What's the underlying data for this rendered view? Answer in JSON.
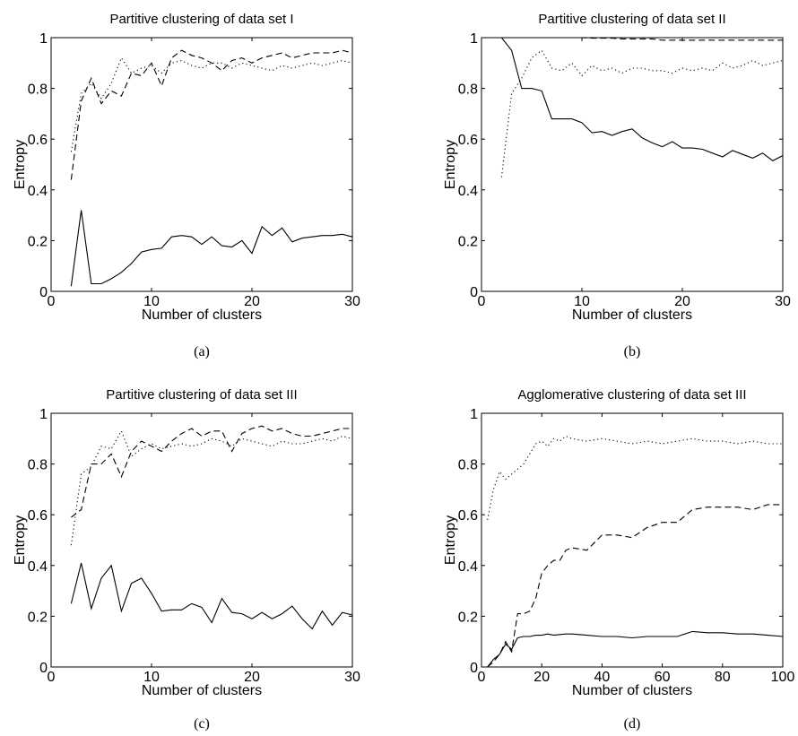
{
  "chart_data": [
    {
      "type": "line",
      "title": "Partitive clustering of data set I",
      "xlabel": "Number of clusters",
      "ylabel": "Entropy",
      "caption": "(a)",
      "xlim": [
        0,
        30
      ],
      "ylim": [
        0,
        1
      ],
      "xticks": [
        0,
        10,
        20,
        30
      ],
      "yticks": [
        0,
        0.2,
        0.4,
        0.6,
        0.8,
        1
      ],
      "ytick_labels": [
        "0",
        "0.2",
        "0.4",
        "0.6",
        "0.8",
        "1"
      ],
      "grid": false,
      "x": [
        2,
        3,
        4,
        5,
        6,
        7,
        8,
        9,
        10,
        11,
        12,
        13,
        14,
        15,
        16,
        17,
        18,
        19,
        20,
        21,
        22,
        23,
        24,
        25,
        26,
        27,
        28,
        29,
        30
      ],
      "series": [
        {
          "style": "solid",
          "values": [
            0.02,
            0.32,
            0.03,
            0.03,
            0.05,
            0.075,
            0.11,
            0.155,
            0.165,
            0.17,
            0.215,
            0.22,
            0.215,
            0.185,
            0.215,
            0.18,
            0.175,
            0.2,
            0.15,
            0.255,
            0.22,
            0.25,
            0.195,
            0.21,
            0.215,
            0.22,
            0.22,
            0.225,
            0.215
          ]
        },
        {
          "style": "dashed",
          "values": [
            0.44,
            0.75,
            0.84,
            0.74,
            0.79,
            0.77,
            0.86,
            0.85,
            0.9,
            0.81,
            0.92,
            0.95,
            0.93,
            0.92,
            0.9,
            0.87,
            0.91,
            0.92,
            0.9,
            0.92,
            0.93,
            0.94,
            0.92,
            0.93,
            0.94,
            0.94,
            0.94,
            0.95,
            0.94
          ]
        },
        {
          "style": "dotted",
          "values": [
            0.55,
            0.78,
            0.82,
            0.76,
            0.82,
            0.92,
            0.86,
            0.88,
            0.89,
            0.86,
            0.9,
            0.91,
            0.89,
            0.88,
            0.9,
            0.9,
            0.88,
            0.9,
            0.89,
            0.88,
            0.87,
            0.89,
            0.88,
            0.89,
            0.9,
            0.89,
            0.9,
            0.91,
            0.9
          ]
        }
      ]
    },
    {
      "type": "line",
      "title": "Partitive clustering of data set II",
      "xlabel": "Number of clusters",
      "ylabel": "Entropy",
      "caption": "(b)",
      "xlim": [
        0,
        30
      ],
      "ylim": [
        0,
        1
      ],
      "xticks": [
        0,
        10,
        20,
        30
      ],
      "yticks": [
        0,
        0.2,
        0.4,
        0.6,
        0.8,
        1
      ],
      "ytick_labels": [
        "0",
        "0.2",
        "0.4",
        "0.6",
        "0.8",
        "1"
      ],
      "grid": false,
      "x": [
        2,
        3,
        4,
        5,
        6,
        7,
        8,
        9,
        10,
        11,
        12,
        13,
        14,
        15,
        16,
        17,
        18,
        19,
        20,
        21,
        22,
        23,
        24,
        25,
        26,
        27,
        28,
        29,
        30
      ],
      "series": [
        {
          "style": "solid",
          "values": [
            1.0,
            0.95,
            0.8,
            0.8,
            0.79,
            0.68,
            0.68,
            0.68,
            0.665,
            0.625,
            0.63,
            0.615,
            0.63,
            0.64,
            0.605,
            0.585,
            0.57,
            0.59,
            0.565,
            0.565,
            0.56,
            0.545,
            0.53,
            0.555,
            0.54,
            0.525,
            0.545,
            0.515,
            0.535
          ]
        },
        {
          "style": "dashed",
          "values": [
            1.0,
            1.0,
            1.0,
            1.0,
            1.0,
            1.0,
            1.0,
            1.0,
            1.0,
            0.998,
            0.998,
            0.998,
            0.995,
            0.995,
            0.995,
            0.995,
            0.99,
            0.99,
            0.99,
            0.99,
            0.99,
            0.99,
            0.99,
            0.99,
            0.99,
            0.99,
            0.99,
            0.99,
            0.99
          ]
        },
        {
          "style": "dotted",
          "values": [
            0.45,
            0.78,
            0.84,
            0.92,
            0.95,
            0.88,
            0.87,
            0.9,
            0.85,
            0.89,
            0.87,
            0.88,
            0.86,
            0.88,
            0.88,
            0.87,
            0.87,
            0.86,
            0.88,
            0.87,
            0.88,
            0.87,
            0.9,
            0.88,
            0.89,
            0.91,
            0.89,
            0.9,
            0.91
          ]
        }
      ]
    },
    {
      "type": "line",
      "title": "Partitive clustering of data set III",
      "xlabel": "Number of clusters",
      "ylabel": "Entropy",
      "caption": "(c)",
      "xlim": [
        0,
        30
      ],
      "ylim": [
        0,
        1
      ],
      "xticks": [
        0,
        10,
        20,
        30
      ],
      "yticks": [
        0,
        0.2,
        0.4,
        0.6,
        0.8,
        1
      ],
      "ytick_labels": [
        "0",
        "0.2",
        "0.4",
        "0.6",
        "0.8",
        "1"
      ],
      "grid": false,
      "x": [
        2,
        3,
        4,
        5,
        6,
        7,
        8,
        9,
        10,
        11,
        12,
        13,
        14,
        15,
        16,
        17,
        18,
        19,
        20,
        21,
        22,
        23,
        24,
        25,
        26,
        27,
        28,
        29,
        30
      ],
      "series": [
        {
          "style": "solid",
          "values": [
            0.25,
            0.41,
            0.23,
            0.35,
            0.4,
            0.22,
            0.33,
            0.35,
            0.29,
            0.22,
            0.225,
            0.225,
            0.25,
            0.235,
            0.175,
            0.27,
            0.215,
            0.21,
            0.19,
            0.215,
            0.19,
            0.21,
            0.24,
            0.19,
            0.15,
            0.22,
            0.165,
            0.215,
            0.205
          ]
        },
        {
          "style": "dashed",
          "values": [
            0.59,
            0.62,
            0.8,
            0.8,
            0.84,
            0.75,
            0.85,
            0.89,
            0.87,
            0.85,
            0.89,
            0.92,
            0.94,
            0.91,
            0.93,
            0.93,
            0.85,
            0.92,
            0.94,
            0.95,
            0.93,
            0.94,
            0.92,
            0.91,
            0.91,
            0.92,
            0.93,
            0.94,
            0.94
          ]
        },
        {
          "style": "dotted",
          "values": [
            0.48,
            0.76,
            0.79,
            0.87,
            0.86,
            0.93,
            0.83,
            0.86,
            0.88,
            0.86,
            0.87,
            0.88,
            0.87,
            0.88,
            0.9,
            0.89,
            0.87,
            0.9,
            0.89,
            0.88,
            0.87,
            0.89,
            0.88,
            0.88,
            0.89,
            0.9,
            0.89,
            0.91,
            0.9
          ]
        }
      ]
    },
    {
      "type": "line",
      "title": "Agglomerative clustering of data set III",
      "xlabel": "Number of clusters",
      "ylabel": "Entropy",
      "caption": "(d)",
      "xlim": [
        0,
        100
      ],
      "ylim": [
        0,
        1
      ],
      "xticks": [
        0,
        20,
        40,
        60,
        80,
        100
      ],
      "yticks": [
        0,
        0.2,
        0.4,
        0.6,
        0.8,
        1
      ],
      "ytick_labels": [
        "0",
        "0.2",
        "0.4",
        "0.6",
        "0.8",
        "1"
      ],
      "grid": false,
      "x": [
        2,
        4,
        6,
        8,
        10,
        12,
        14,
        16,
        18,
        20,
        22,
        24,
        26,
        28,
        30,
        35,
        40,
        45,
        50,
        55,
        60,
        65,
        70,
        75,
        80,
        85,
        90,
        95,
        100
      ],
      "series": [
        {
          "style": "solid",
          "values": [
            0.0,
            0.03,
            0.05,
            0.09,
            0.07,
            0.115,
            0.12,
            0.12,
            0.125,
            0.125,
            0.13,
            0.125,
            0.128,
            0.13,
            0.13,
            0.125,
            0.12,
            0.12,
            0.115,
            0.12,
            0.12,
            0.12,
            0.14,
            0.135,
            0.135,
            0.13,
            0.13,
            0.125,
            0.12
          ]
        },
        {
          "style": "dashed",
          "values": [
            0.0,
            0.02,
            0.05,
            0.1,
            0.06,
            0.21,
            0.21,
            0.22,
            0.27,
            0.37,
            0.4,
            0.42,
            0.42,
            0.46,
            0.47,
            0.46,
            0.52,
            0.52,
            0.51,
            0.55,
            0.57,
            0.57,
            0.62,
            0.63,
            0.63,
            0.63,
            0.62,
            0.64,
            0.64
          ]
        },
        {
          "style": "dotted",
          "values": [
            0.58,
            0.7,
            0.77,
            0.74,
            0.76,
            0.78,
            0.8,
            0.84,
            0.88,
            0.89,
            0.87,
            0.9,
            0.89,
            0.91,
            0.9,
            0.89,
            0.9,
            0.89,
            0.88,
            0.89,
            0.88,
            0.89,
            0.9,
            0.89,
            0.89,
            0.88,
            0.89,
            0.88,
            0.88
          ]
        }
      ]
    }
  ]
}
